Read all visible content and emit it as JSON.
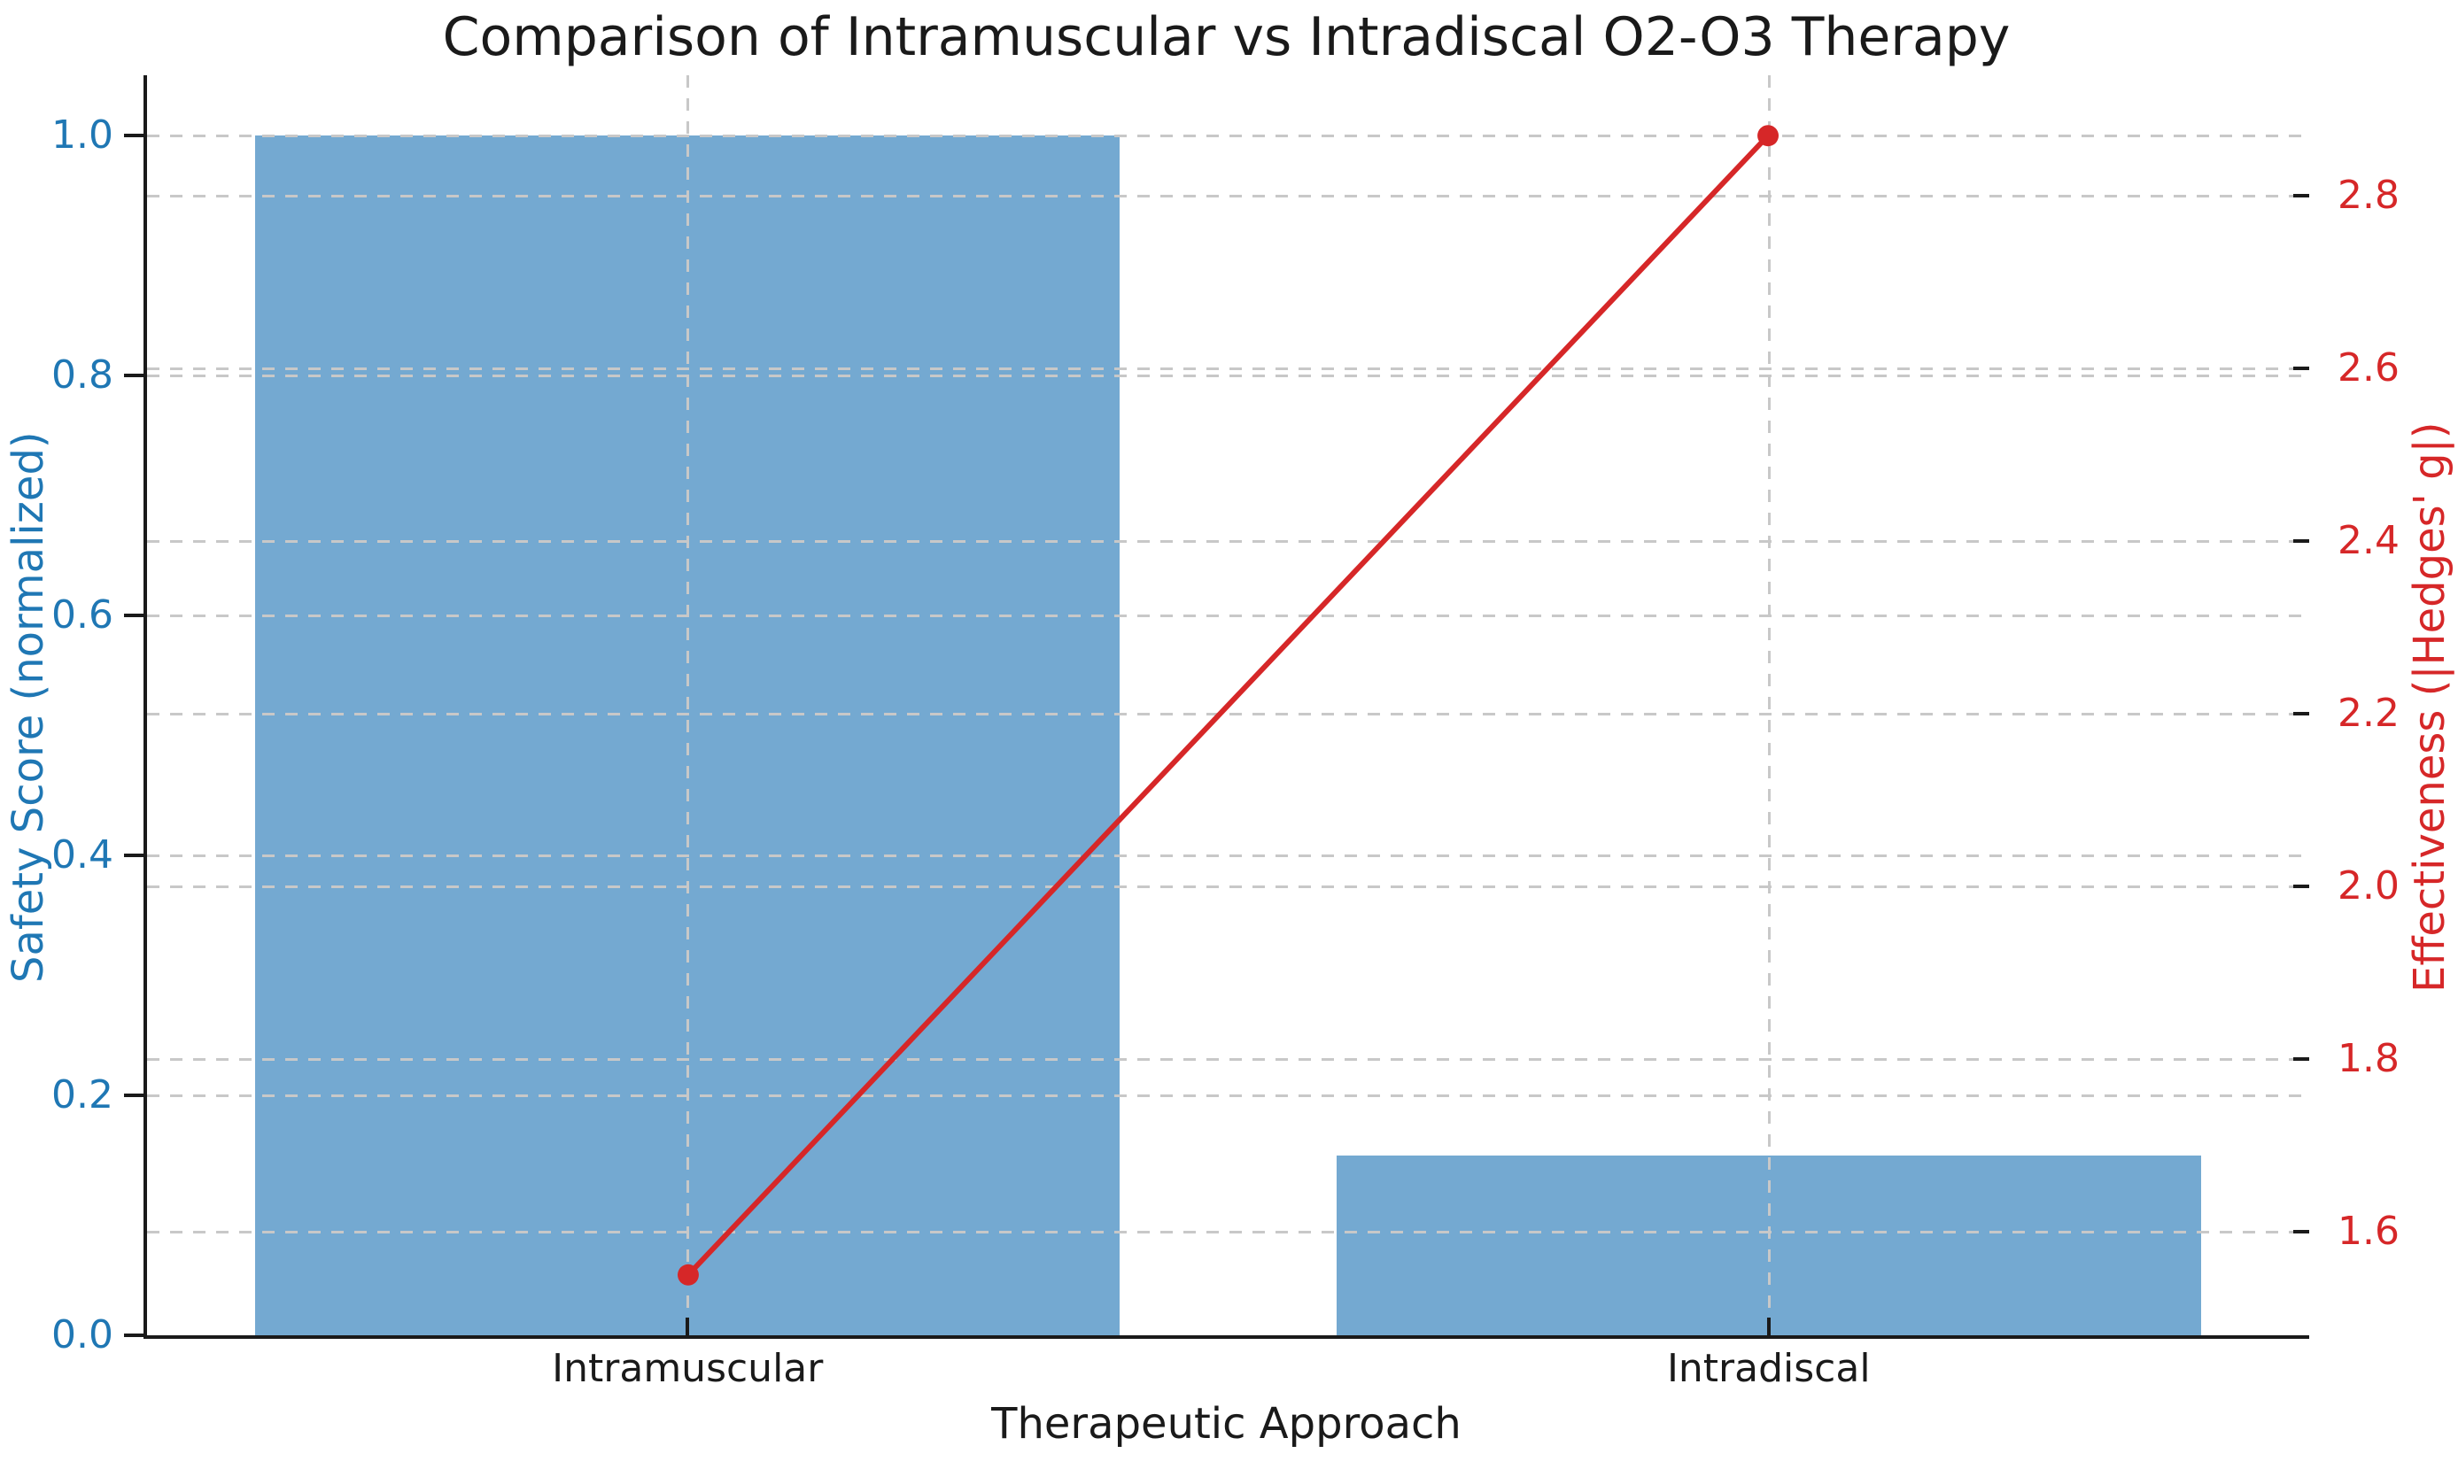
{
  "title": "Comparison of Intramuscular vs Intradiscal O2-O3 Therapy",
  "colors": {
    "bar_fill": "#74a9d1",
    "line": "#d62728",
    "left_axis_text": "#1f77b4",
    "right_axis_text": "#d62728",
    "grid": "#c8c8c8",
    "text": "#1a1a1a",
    "spine": "#1a1a1a",
    "background": "#ffffff"
  },
  "chart_data": {
    "type": "combo",
    "categories": [
      "Intramuscular",
      "Intradiscal"
    ],
    "series": [
      {
        "name": "Safety Score (normalized)",
        "type": "bar",
        "axis": "left",
        "values": [
          1.0,
          0.15
        ],
        "color": "#74a9d1"
      },
      {
        "name": "Effectiveness (|Hedges' g|)",
        "type": "line",
        "axis": "right",
        "values": [
          1.55,
          2.87
        ],
        "color": "#d62728"
      }
    ],
    "title": "Comparison of Intramuscular vs Intradiscal O2-O3 Therapy",
    "xlabel": "Therapeutic Approach",
    "left_axis": {
      "label": "Safety Score (normalized)",
      "tick_labels": [
        "0.0",
        "0.2",
        "0.4",
        "0.6",
        "0.8",
        "1.0"
      ],
      "tick_values": [
        0.0,
        0.2,
        0.4,
        0.6,
        0.8,
        1.0
      ],
      "range": [
        0,
        1.05
      ],
      "color": "#1f77b4"
    },
    "right_axis": {
      "label": "Effectiveness (|Hedges' g|)",
      "tick_labels": [
        "1.6",
        "1.8",
        "2.0",
        "2.2",
        "2.4",
        "2.6",
        "2.8"
      ],
      "tick_values": [
        1.6,
        1.8,
        2.0,
        2.2,
        2.4,
        2.6,
        2.8
      ],
      "range": [
        1.48,
        2.94
      ],
      "color": "#d62728"
    },
    "grid": "dashed, both axes, vertical at category centers",
    "legend": "none",
    "bar_width_fraction": 0.8
  }
}
